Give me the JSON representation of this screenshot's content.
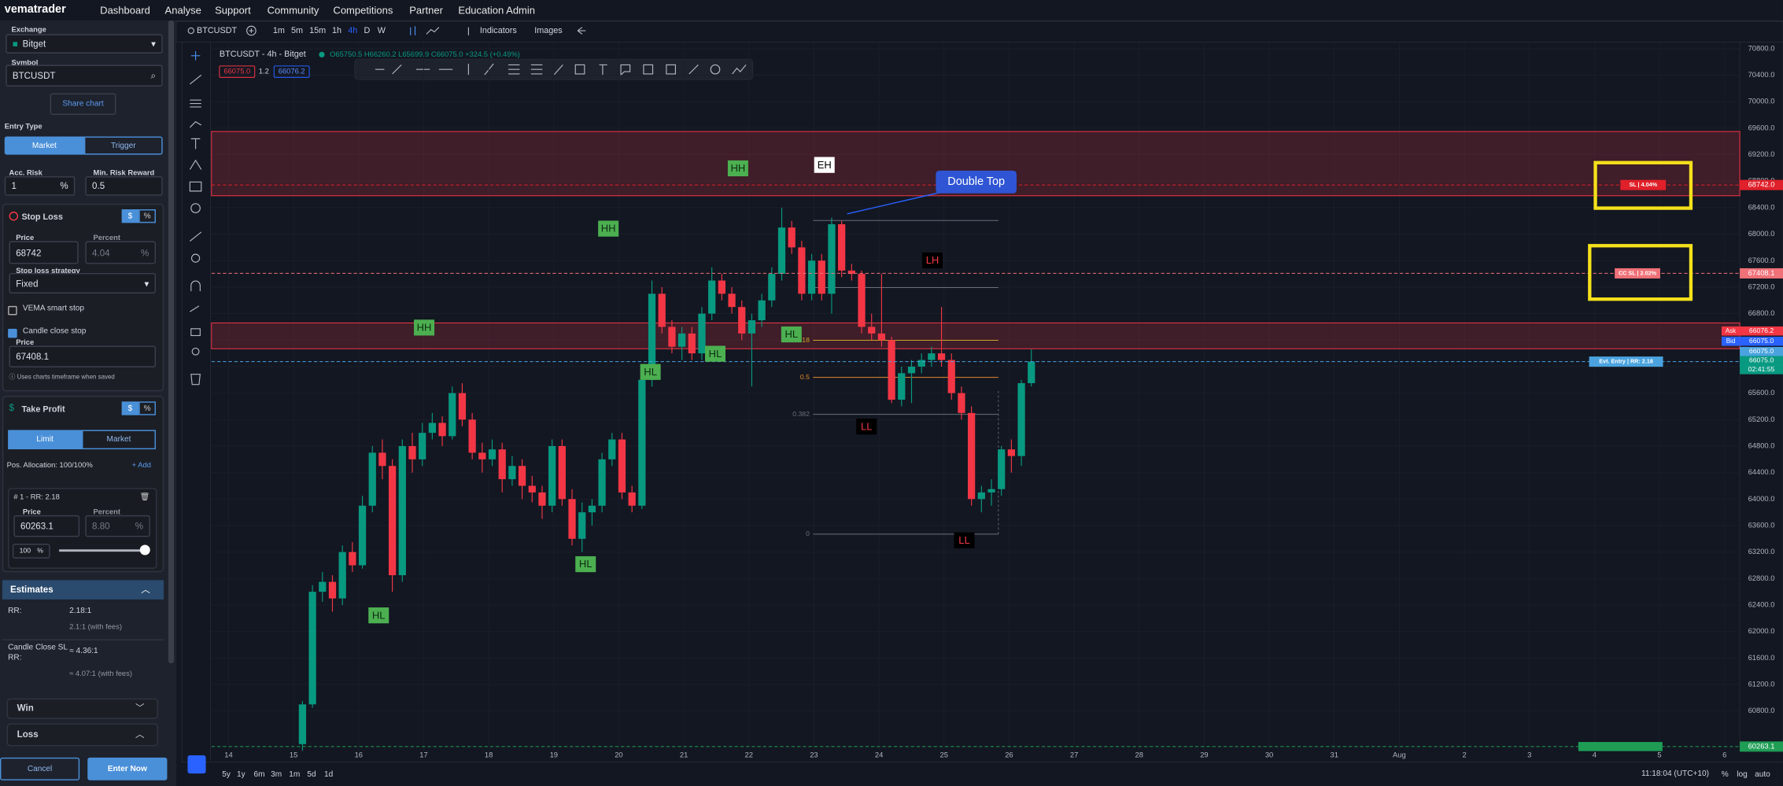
{
  "nav": {
    "logo": "vematrader",
    "items": [
      "Dashboard",
      "Analyse",
      "Support",
      "Community",
      "Competitions",
      "Partner",
      "Education Admin"
    ]
  },
  "sidebar": {
    "exchange_label": "Exchange",
    "exchange": "Bitget",
    "symbol_label": "Symbol",
    "symbol": "BTCUSDT",
    "share": "Share chart",
    "entry_type_label": "Entry Type",
    "entry_types": [
      "Market",
      "Trigger"
    ],
    "acc_risk_label": "Acc. Risk",
    "acc_risk": "1",
    "acc_risk_unit": "%",
    "min_rr_label": "Min. Risk Reward",
    "min_rr": "0.5",
    "stop_loss": {
      "title": "Stop Loss",
      "toggle": [
        "$",
        "%"
      ],
      "price_label": "Price",
      "price": "68742",
      "percent_label": "Percent",
      "percent": "4.04",
      "percent_unit": "%",
      "strategy_label": "Stop loss strategy",
      "strategy": "Fixed",
      "smart_stop": "VEMA smart stop",
      "candle_close": "Candle close stop",
      "cc_price_label": "Price",
      "cc_price": "67408.1",
      "note": "Uses charts timeframe when saved"
    },
    "take_profit": {
      "title": "Take Profit",
      "toggle": [
        "$",
        "%"
      ],
      "types": [
        "Limit",
        "Market"
      ],
      "allocation": "Pos. Allocation: 100/100%",
      "add": "+ Add",
      "target": "# 1 - RR: 2.18",
      "price_label": "Price",
      "price": "60263.1",
      "percent_label": "Percent",
      "percent": "8.80",
      "percent_unit": "%",
      "size": "100",
      "size_unit": "%"
    },
    "estimates": {
      "title": "Estimates",
      "rows": [
        {
          "label": "RR:",
          "value": "2.18:1",
          "sub": "2.1:1 (with fees)"
        },
        {
          "label": "Candle Close SL RR:",
          "value": "≈ 4.36:1",
          "sub": "≈ 4.07:1 (with fees)"
        }
      ]
    },
    "win": "Win",
    "loss": "Loss",
    "cancel": "Cancel",
    "enter": "Enter Now"
  },
  "toolbar": {
    "symbol": "BTCUSDT",
    "timeframes": [
      "1m",
      "5m",
      "15m",
      "1h",
      "4h",
      "D",
      "W"
    ],
    "indicators": "Indicators",
    "images": "Images"
  },
  "chart_data": {
    "type": "candlestick",
    "title": "BTCUSDT - 4h - Bitget",
    "legend": "O65750.5 H66260.2 L65699.9 C66075.0 +324.5 (+0.49%)",
    "sell": "66075.0",
    "quantity": "1.2",
    "buy": "66076.2",
    "categories": [
      "14",
      "15",
      "16",
      "17",
      "18",
      "19",
      "20",
      "21",
      "22",
      "23",
      "24",
      "25",
      "26",
      "27",
      "28",
      "29",
      "30",
      "31",
      "Aug",
      "2",
      "3",
      "4",
      "5",
      "6"
    ],
    "candles": [
      [
        60300,
        60950,
        60200,
        60900
      ],
      [
        60900,
        62700,
        60850,
        62600
      ],
      [
        62600,
        62900,
        62450,
        62750
      ],
      [
        62750,
        62850,
        62300,
        62500
      ],
      [
        62500,
        63300,
        62400,
        63200
      ],
      [
        63200,
        63350,
        62900,
        63000
      ],
      [
        63000,
        64050,
        62950,
        63900
      ],
      [
        63900,
        64800,
        63800,
        64700
      ],
      [
        64700,
        64900,
        64300,
        64500
      ],
      [
        64500,
        64600,
        62600,
        62850
      ],
      [
        62850,
        64900,
        62750,
        64800
      ],
      [
        64800,
        65000,
        64400,
        64600
      ],
      [
        64600,
        65150,
        64500,
        65000
      ],
      [
        65000,
        65300,
        64900,
        65150
      ],
      [
        65150,
        65250,
        64800,
        64950
      ],
      [
        64950,
        65700,
        64900,
        65600
      ],
      [
        65600,
        65750,
        65100,
        65200
      ],
      [
        65200,
        65300,
        64600,
        64700
      ],
      [
        64700,
        64850,
        64400,
        64600
      ],
      [
        64600,
        64900,
        64500,
        64750
      ],
      [
        64750,
        64850,
        64100,
        64300
      ],
      [
        64300,
        64650,
        64200,
        64500
      ],
      [
        64500,
        64600,
        64000,
        64200
      ],
      [
        64200,
        64350,
        63950,
        64100
      ],
      [
        64100,
        64200,
        63700,
        63900
      ],
      [
        63900,
        64900,
        63800,
        64800
      ],
      [
        64800,
        64900,
        63900,
        64000
      ],
      [
        64000,
        64150,
        63300,
        63400
      ],
      [
        63400,
        63950,
        63200,
        63800
      ],
      [
        63800,
        64000,
        63600,
        63900
      ],
      [
        63900,
        64700,
        63800,
        64600
      ],
      [
        64600,
        65000,
        64500,
        64900
      ],
      [
        64900,
        65000,
        64000,
        64100
      ],
      [
        64100,
        64200,
        63800,
        63900
      ],
      [
        63900,
        65900,
        63850,
        65800
      ],
      [
        65800,
        67300,
        65700,
        67100
      ],
      [
        67100,
        67200,
        66500,
        66600
      ],
      [
        66600,
        66700,
        66200,
        66300
      ],
      [
        66300,
        66600,
        66100,
        66500
      ],
      [
        66500,
        66600,
        66100,
        66200
      ],
      [
        66200,
        66900,
        66100,
        66800
      ],
      [
        66800,
        67500,
        66700,
        67300
      ],
      [
        67300,
        67400,
        67000,
        67100
      ],
      [
        67100,
        67200,
        66800,
        66900
      ],
      [
        66900,
        67000,
        66400,
        66500
      ],
      [
        66500,
        66800,
        65700,
        66700
      ],
      [
        66700,
        67100,
        66600,
        67000
      ],
      [
        67000,
        67500,
        66900,
        67400
      ],
      [
        67400,
        68400,
        67300,
        68100
      ],
      [
        68100,
        68200,
        67700,
        67800
      ],
      [
        67800,
        67900,
        67000,
        67100
      ],
      [
        67100,
        67700,
        67000,
        67600
      ],
      [
        67600,
        67700,
        67000,
        67100
      ],
      [
        67100,
        68250,
        66800,
        68150
      ],
      [
        68150,
        68200,
        67350,
        67450
      ],
      [
        67450,
        67550,
        67300,
        67400
      ],
      [
        67400,
        67450,
        66500,
        66600
      ],
      [
        66600,
        66800,
        66400,
        66500
      ],
      [
        66500,
        67400,
        66300,
        66400
      ],
      [
        66400,
        66450,
        65450,
        65500
      ],
      [
        65500,
        66000,
        65400,
        65900
      ],
      [
        65900,
        66100,
        65450,
        66000
      ],
      [
        66000,
        66200,
        65900,
        66100
      ],
      [
        66100,
        66300,
        66000,
        66200
      ],
      [
        66200,
        66900,
        66000,
        66100
      ],
      [
        66100,
        66200,
        65500,
        65600
      ],
      [
        65600,
        65700,
        65200,
        65300
      ],
      [
        65300,
        65400,
        63900,
        64000
      ],
      [
        64000,
        64200,
        63800,
        64100
      ],
      [
        64100,
        64300,
        63900,
        64150
      ],
      [
        64150,
        64800,
        64050,
        64750
      ],
      [
        64750,
        64900,
        64400,
        64650
      ],
      [
        64650,
        65800,
        64500,
        65750
      ],
      [
        65750,
        66260.2,
        65699.9,
        66075
      ]
    ],
    "up_color": "#089981",
    "down_color": "#f23645",
    "ylim": [
      60200,
      70900
    ],
    "yticks": [
      {
        "value": 70800,
        "label": "70800.0"
      },
      {
        "value": 70400,
        "label": "70400.0"
      },
      {
        "value": 70000,
        "label": "70000.0"
      },
      {
        "value": 69600,
        "label": "69600.0"
      },
      {
        "value": 69200,
        "label": "69200.0"
      },
      {
        "value": 68800,
        "label": "68800.0"
      },
      {
        "value": 68400,
        "label": "68400.0"
      },
      {
        "value": 68000,
        "label": "68000.0"
      },
      {
        "value": 67600,
        "label": "67600.0"
      },
      {
        "value": 67200,
        "label": "67200.0"
      },
      {
        "value": 66800,
        "label": "66800.0"
      },
      {
        "value": 66400,
        "label": "66400.0"
      },
      {
        "value": 66000,
        "label": "66000.0"
      },
      {
        "value": 65600,
        "label": "65600.0"
      },
      {
        "value": 65200,
        "label": "65200.0"
      },
      {
        "value": 64800,
        "label": "64800.0"
      },
      {
        "value": 64400,
        "label": "64400.0"
      },
      {
        "value": 64000,
        "label": "64000.0"
      },
      {
        "value": 63600,
        "label": "63600.0"
      },
      {
        "value": 63200,
        "label": "63200.0"
      },
      {
        "value": 62800,
        "label": "62800.0"
      },
      {
        "value": 62400,
        "label": "62400.0"
      },
      {
        "value": 62000,
        "label": "62000.0"
      },
      {
        "value": 61600,
        "label": "61600.0"
      },
      {
        "value": 61200,
        "label": "61200.0"
      },
      {
        "value": 60800,
        "label": "60800.0"
      }
    ],
    "grid": true,
    "zones": [
      [
        69550,
        68580
      ],
      [
        66660,
        66270
      ]
    ],
    "levels": [
      {
        "name": "SL | 4.04%",
        "value": 68742,
        "label": "68742.0",
        "color": "#e0202a"
      },
      {
        "name": "CC SL | 2.02%",
        "value": 67408.1,
        "label": "67408.1",
        "color": "#f07178"
      },
      {
        "name": "Evt. Entry | RR: 2.18",
        "value": 66075,
        "label": "66075.0",
        "color": "#4aa3df"
      },
      {
        "value": 60263.1,
        "label": "60263.1",
        "color": "#1f9d55"
      }
    ],
    "fib": [
      {
        "value": 68206
      },
      {
        "value": 67193
      },
      {
        "label": "0.618",
        "value": 66397
      },
      {
        "label": "0.5",
        "value": 65838
      },
      {
        "label": "0.382",
        "value": 65279
      },
      {
        "label": "0",
        "value": 63470
      }
    ],
    "annotations": [
      "HH",
      "EH",
      "HH",
      "LH",
      "HH",
      "HL",
      "HL",
      "HL",
      "LL",
      "LL",
      "HL",
      "HL"
    ],
    "callout": "Double Top",
    "ask": {
      "label": "Ask",
      "price": "66076.2"
    },
    "bid": {
      "label": "Bid",
      "price": "66075.0"
    },
    "mark_price": "66075.0",
    "last_price": "66075.0",
    "countdown": "02:41:55",
    "range_buttons": [
      "5y",
      "1y",
      "6m",
      "3m",
      "1m",
      "5d",
      "1d"
    ],
    "time": "11:18:04 (UTC+10)",
    "scale_options": [
      "%",
      "log",
      "auto"
    ]
  }
}
